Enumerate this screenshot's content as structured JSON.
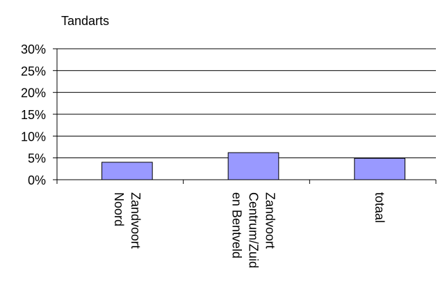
{
  "chart_data": {
    "type": "bar",
    "title": "Tandarts",
    "categories": [
      "Zandvoort Noord",
      "Zandvoort Centrum/Zuid en Bentveld",
      "totaal"
    ],
    "values": [
      4,
      6.2,
      4.9
    ],
    "color": "#9999ff",
    "ylim": [
      0,
      30
    ],
    "yticks": [
      {
        "value": 0,
        "label": "0%"
      },
      {
        "value": 5,
        "label": "5%"
      },
      {
        "value": 10,
        "label": "10%"
      },
      {
        "value": 15,
        "label": "15%"
      },
      {
        "value": 20,
        "label": "20%"
      },
      {
        "value": 25,
        "label": "25%"
      },
      {
        "value": 30,
        "label": "30%"
      }
    ],
    "grid": true
  }
}
